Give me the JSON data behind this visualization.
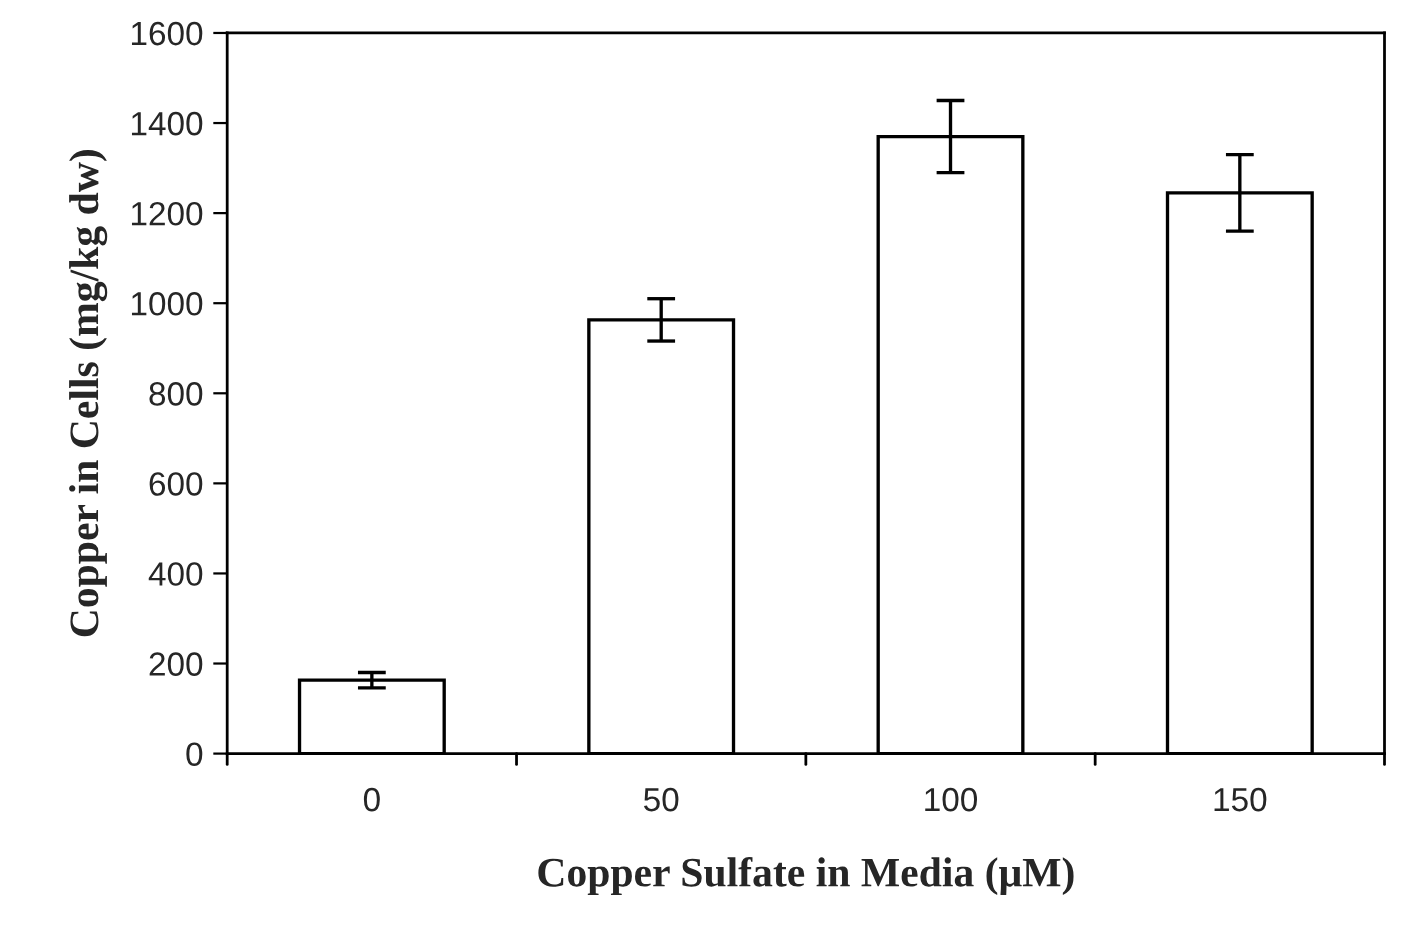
{
  "chart_data": {
    "type": "bar",
    "xlabel": "Copper Sulfate in Media (μM)",
    "ylabel": "Copper in Cells (mg/kg dw)",
    "categories": [
      "0",
      "50",
      "100",
      "150"
    ],
    "values": [
      163,
      963,
      1370,
      1245
    ],
    "errors": [
      17,
      47,
      80,
      85
    ],
    "color": "#ffffff",
    "ylim": [
      0,
      1600
    ],
    "yticks": [
      0,
      200,
      400,
      600,
      800,
      1000,
      1200,
      1400,
      1600
    ],
    "grid": false
  }
}
